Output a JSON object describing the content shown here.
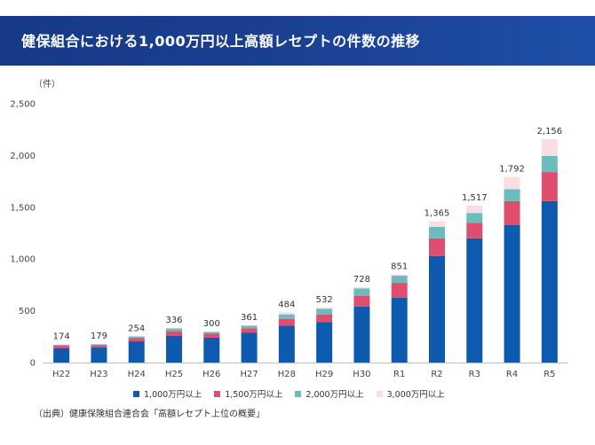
{
  "header": {
    "title": "健保組合における1,000万円以上高額レセプトの件数の推移"
  },
  "unit_label": "（件）",
  "source": "（出典）健康保険組合連合会「高額レセプト上位の概要」",
  "chart_data": {
    "type": "bar",
    "stacked": true,
    "categories": [
      "H22",
      "H23",
      "H24",
      "H25",
      "H26",
      "H27",
      "H28",
      "H29",
      "H30",
      "R1",
      "R2",
      "R3",
      "R4",
      "R5"
    ],
    "series": [
      {
        "name": "1,000万円以上",
        "color": "#0e5aae",
        "values": [
          140,
          145,
          205,
          260,
          240,
          290,
          355,
          390,
          540,
          625,
          1030,
          1200,
          1330,
          1560
        ]
      },
      {
        "name": "1,500万円以上",
        "color": "#e04e6f",
        "values": [
          22,
          22,
          33,
          45,
          38,
          42,
          65,
          75,
          105,
          145,
          170,
          150,
          230,
          280
        ]
      },
      {
        "name": "2,000万円以上",
        "color": "#6bbcbc",
        "values": [
          10,
          10,
          14,
          24,
          18,
          25,
          45,
          55,
          70,
          70,
          110,
          95,
          115,
          155
        ]
      },
      {
        "name": "3,000万円以上",
        "color": "#fadde2",
        "values": [
          2,
          2,
          2,
          7,
          4,
          4,
          19,
          12,
          13,
          11,
          55,
          72,
          117,
          161
        ]
      }
    ],
    "totals": [
      "174",
      "179",
      "254",
      "336",
      "300",
      "361",
      "484",
      "532",
      "728",
      "851",
      "1,365",
      "1,517",
      "1,792",
      "2,156"
    ],
    "ylim": [
      0,
      2500
    ],
    "yticks": [
      "0",
      "500",
      "1,000",
      "1,500",
      "2,000",
      "2,500"
    ],
    "ytick_values": [
      0,
      500,
      1000,
      1500,
      2000,
      2500
    ],
    "grid": false,
    "legend_position": "bottom"
  }
}
